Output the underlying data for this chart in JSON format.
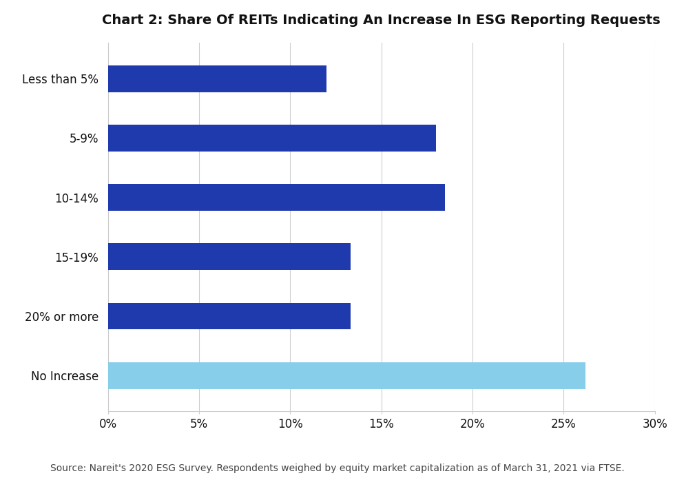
{
  "title": "Chart 2: Share Of REITs Indicating An Increase In ESG Reporting Requests",
  "categories": [
    "Less than 5%",
    "5-9%",
    "10-14%",
    "15-19%",
    "20% or more",
    "No Increase"
  ],
  "values": [
    0.12,
    0.18,
    0.185,
    0.133,
    0.133,
    0.262
  ],
  "bar_colors": [
    "#1f3aad",
    "#1f3aad",
    "#1f3aad",
    "#1f3aad",
    "#1f3aad",
    "#87ceeb"
  ],
  "xlim": [
    0,
    0.3
  ],
  "xticks": [
    0,
    0.05,
    0.1,
    0.15,
    0.2,
    0.25,
    0.3
  ],
  "xticklabels": [
    "0%",
    "5%",
    "10%",
    "15%",
    "20%",
    "25%",
    "30%"
  ],
  "footnote": "Source: Nareit's 2020 ESG Survey. Respondents weighed by equity market capitalization as of March 31, 2021 via FTSE.",
  "title_fontsize": 14,
  "tick_fontsize": 12,
  "footnote_fontsize": 10,
  "bar_height": 0.45,
  "background_color": "#ffffff",
  "grid_color": "#cccccc",
  "spine_color": "#cccccc",
  "text_color": "#111111"
}
